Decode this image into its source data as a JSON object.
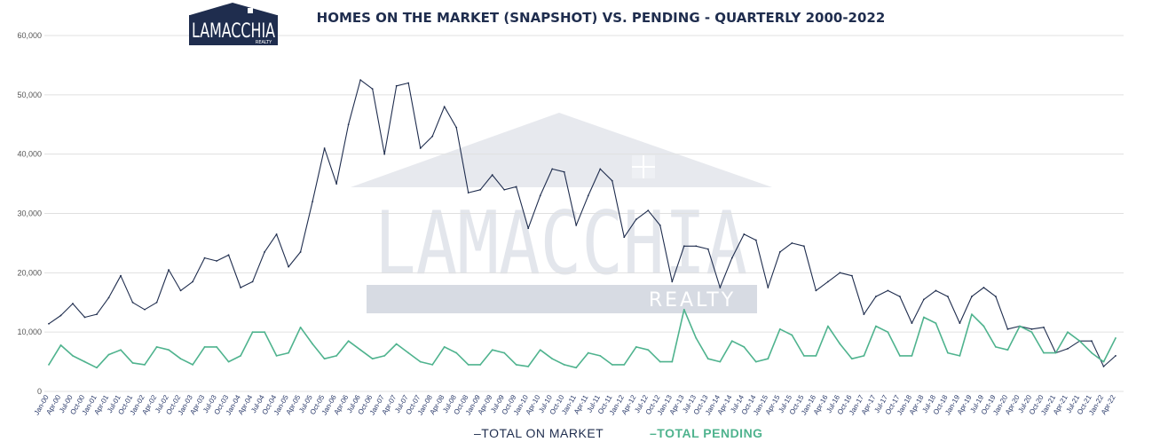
{
  "logo": {
    "text": "LAMACCHIA",
    "sub": "REALTY"
  },
  "watermark": {
    "text": "LAMACCHIA",
    "sub": "REALTY"
  },
  "colors": {
    "total_on_market": "#1f2d4e",
    "total_pending": "#4fb38e",
    "grid": "#e0e0e0"
  },
  "chart_data": {
    "type": "line",
    "title": "HOMES ON THE MARKET (SNAPSHOT) VS. PENDING - QUARTERLY 2000-2022",
    "ylim": [
      0,
      60000
    ],
    "yticks": [
      "0",
      "10,000",
      "20,000",
      "30,000",
      "40,000",
      "50,000",
      "60,000"
    ],
    "ytick_values": [
      0,
      10000,
      20000,
      30000,
      40000,
      50000,
      60000
    ],
    "xtick_labels": [
      "Jan-00",
      "Apr-00",
      "Jul-00",
      "Oct-00",
      "Jan-01",
      "Apr-01",
      "Jul-01",
      "Oct-01",
      "Jan-02",
      "Apr-02",
      "Jul-02",
      "Oct-02",
      "Jan-03",
      "Apr-03",
      "Jul-03",
      "Oct-03",
      "Jan-04",
      "Apr-04",
      "Jul-04",
      "Oct-04",
      "Jan-05",
      "Apr-05",
      "Jul-05",
      "Oct-05",
      "Jan-06",
      "Apr-06",
      "Jul-06",
      "Oct-06",
      "Jan-07",
      "Apr-07",
      "Jul-07",
      "Oct-07",
      "Jan-08",
      "Apr-08",
      "Jul-08",
      "Oct-08",
      "Jan-09",
      "Apr-09",
      "Jul-09",
      "Oct-09",
      "Jan-10",
      "Apr-10",
      "Jul-10",
      "Oct-10",
      "Jan-11",
      "Apr-11",
      "Jul-11",
      "Oct-11",
      "Jan-12",
      "Apr-12",
      "Jul-12",
      "Oct-12",
      "Jan-13",
      "Apr-13",
      "Jul-13",
      "Oct-13",
      "Jan-14",
      "Apr-14",
      "Jul-14",
      "Oct-14",
      "Jan-15",
      "Apr-15",
      "Jul-15",
      "Oct-15",
      "Jan-16",
      "Apr-16",
      "Jul-16",
      "Oct-16",
      "Jan-17",
      "Apr-17",
      "Jul-17",
      "Oct-17",
      "Jan-18",
      "Apr-18",
      "Jul-18",
      "Oct-18",
      "Jan-19",
      "Apr-19",
      "Jul-19",
      "Oct-19",
      "Jan-20",
      "Apr-20",
      "Jul-20",
      "Oct-20",
      "Jan-21",
      "Apr-21",
      "Jul-21",
      "Oct-21",
      "Jan-22",
      "Apr-22"
    ],
    "legend": [
      "–TOTAL ON MARKET",
      "–TOTAL PENDING"
    ],
    "legend_position": "bottom",
    "grid": true,
    "series": [
      {
        "name": "TOTAL ON MARKET",
        "values": [
          11400,
          12800,
          14800,
          12500,
          13000,
          15800,
          19500,
          15000,
          13800,
          15000,
          20500,
          17000,
          18500,
          22500,
          22000,
          23000,
          17500,
          18500,
          23500,
          26500,
          21000,
          23500,
          32000,
          41000,
          35000,
          45000,
          52500,
          51000,
          40000,
          51500,
          52000,
          41000,
          43000,
          48000,
          44500,
          33500,
          34000,
          36500,
          34000,
          34500,
          27500,
          33000,
          37500,
          37000,
          28000,
          33000,
          37500,
          35500,
          26000,
          29000,
          30500,
          28000,
          18500,
          24500,
          24500,
          24000,
          17500,
          22500,
          26500,
          25500,
          17500,
          23500,
          25000,
          24500,
          17000,
          18500,
          20000,
          19500,
          13000,
          16000,
          17000,
          16000,
          11500,
          15500,
          17000,
          16000,
          11500,
          16000,
          17500,
          16000,
          10500,
          11000,
          10500,
          10800,
          6500,
          7200,
          8500,
          8500,
          4200,
          6000
        ]
      },
      {
        "name": "TOTAL PENDING",
        "values": [
          4500,
          7800,
          6000,
          5000,
          4000,
          6200,
          7000,
          4800,
          4500,
          7500,
          7000,
          5500,
          4500,
          7500,
          7500,
          5000,
          6000,
          10000,
          10000,
          6000,
          6500,
          10800,
          8000,
          5500,
          6000,
          8500,
          7000,
          5500,
          6000,
          8000,
          6500,
          5000,
          4500,
          7500,
          6500,
          4500,
          4500,
          7000,
          6500,
          4500,
          4200,
          7000,
          5500,
          4500,
          4000,
          6500,
          6000,
          4500,
          4500,
          7500,
          7000,
          5000,
          5000,
          13800,
          9000,
          5500,
          5000,
          8500,
          7500,
          5000,
          5500,
          10500,
          9500,
          6000,
          6000,
          11000,
          8000,
          5500,
          6000,
          11000,
          10000,
          6000,
          6000,
          12500,
          11500,
          6500,
          6000,
          13000,
          11000,
          7500,
          7000,
          11000,
          10000,
          6500,
          6500,
          10000,
          8500,
          6500,
          5000,
          9000
        ]
      }
    ]
  }
}
